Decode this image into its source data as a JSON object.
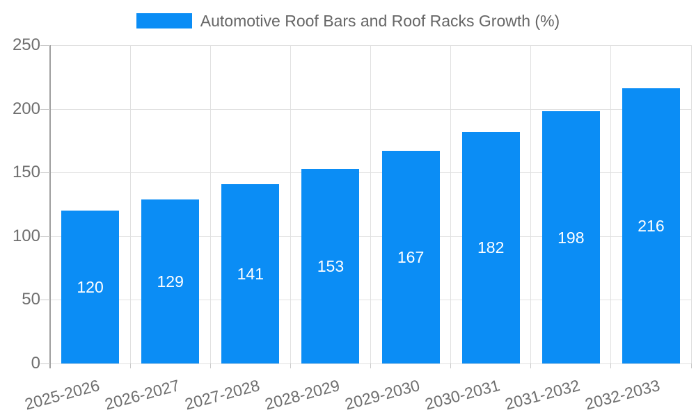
{
  "chart_data": {
    "type": "bar",
    "title": "Automotive Roof Bars and Roof Racks Growth (%)",
    "legend_label": "Automotive Roof Bars and Roof Racks Growth (%)",
    "legend_position": "top-center",
    "categories": [
      "2025-2026",
      "2026-2027",
      "2027-2028",
      "2028-2029",
      "2029-2030",
      "2030-2031",
      "2031-2032",
      "2032-2033"
    ],
    "values": [
      120,
      129,
      141,
      153,
      167,
      182,
      198,
      216
    ],
    "value_labels_shown": true,
    "xlabel": "",
    "ylabel": "",
    "ylim": [
      0,
      250
    ],
    "yticks": [
      0,
      50,
      100,
      150,
      200,
      250
    ],
    "grid": true,
    "x_label_rotation_deg": -15
  },
  "colors": {
    "bar": "#0b8df5",
    "gridline": "#e0e0e0",
    "axis_line": "#9e9e9e",
    "tick": "#c9c9c9",
    "tick_label": "#6e6e6e",
    "legend_text": "#666666",
    "value_label": "#ffffff",
    "background": "#ffffff"
  }
}
